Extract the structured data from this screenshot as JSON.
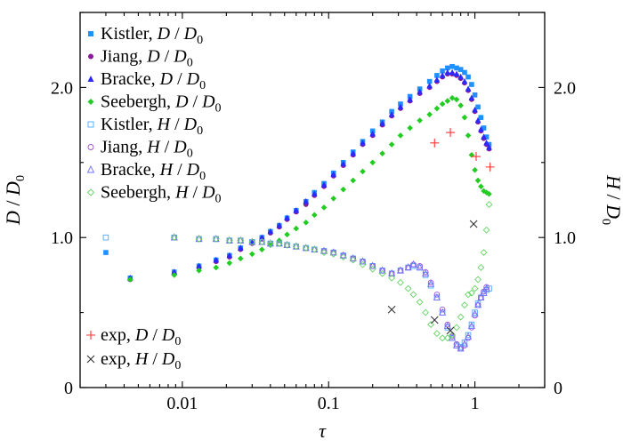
{
  "chart_data": {
    "type": "scatter",
    "x_scale": "log",
    "xlim": [
      0.002,
      3
    ],
    "ylim": [
      0,
      2.5
    ],
    "xlabel": "τ",
    "ylabel_left": "D / D0",
    "ylabel_right": "H / D0",
    "x_ticks": [
      {
        "value": 0.01,
        "label": "0.01"
      },
      {
        "value": 0.1,
        "label": "0.1"
      },
      {
        "value": 1,
        "label": "1"
      }
    ],
    "y_ticks_left": [
      {
        "value": 0,
        "label": "0"
      },
      {
        "value": 1,
        "label": "1.0"
      },
      {
        "value": 2,
        "label": "2.0"
      }
    ],
    "y_ticks_right": [
      {
        "value": 0,
        "label": "0"
      },
      {
        "value": 1,
        "label": "1.0"
      },
      {
        "value": 2,
        "label": "2.0"
      }
    ],
    "grid": false,
    "legend_placement": "top-left and bottom-left",
    "series": [
      {
        "name": "Kistler, D / D0",
        "legend_main": "Kistler, ",
        "legend_var": "D",
        "legend_den": "D",
        "marker": "square-filled",
        "color": "#1e90ff",
        "x": [
          0.003,
          0.0044,
          0.0088,
          0.013,
          0.017,
          0.021,
          0.025,
          0.03,
          0.035,
          0.04,
          0.046,
          0.052,
          0.06,
          0.07,
          0.08,
          0.093,
          0.108,
          0.126,
          0.147,
          0.171,
          0.2,
          0.233,
          0.27,
          0.31,
          0.36,
          0.42,
          0.49,
          0.55,
          0.6,
          0.65,
          0.7,
          0.75,
          0.8,
          0.85,
          0.9,
          0.95,
          1.0,
          1.05,
          1.1,
          1.15,
          1.2,
          1.25
        ],
        "y": [
          0.9,
          0.73,
          0.77,
          0.81,
          0.85,
          0.88,
          0.93,
          0.97,
          1.0,
          1.04,
          1.08,
          1.13,
          1.18,
          1.24,
          1.3,
          1.36,
          1.43,
          1.5,
          1.57,
          1.64,
          1.71,
          1.77,
          1.84,
          1.89,
          1.94,
          1.99,
          2.04,
          2.08,
          2.11,
          2.13,
          2.14,
          2.13,
          2.12,
          2.1,
          2.07,
          2.02,
          1.95,
          1.87,
          1.8,
          1.73,
          1.67,
          1.62
        ]
      },
      {
        "name": "Jiang, D / D0",
        "legend_main": "Jiang, ",
        "legend_var": "D",
        "legend_den": "D",
        "marker": "circle-filled",
        "color": "#8b1a9b",
        "x": [
          0.0044,
          0.0088,
          0.013,
          0.017,
          0.021,
          0.025,
          0.03,
          0.035,
          0.04,
          0.046,
          0.052,
          0.06,
          0.07,
          0.08,
          0.093,
          0.108,
          0.126,
          0.147,
          0.171,
          0.2,
          0.233,
          0.27,
          0.31,
          0.36,
          0.42,
          0.49,
          0.55,
          0.6,
          0.65,
          0.7,
          0.75,
          0.8,
          0.85,
          0.9,
          0.95,
          1.0,
          1.05,
          1.1,
          1.15,
          1.2,
          1.25
        ],
        "y": [
          0.72,
          0.76,
          0.8,
          0.84,
          0.87,
          0.92,
          0.96,
          0.99,
          1.03,
          1.07,
          1.12,
          1.17,
          1.22,
          1.28,
          1.34,
          1.41,
          1.48,
          1.55,
          1.62,
          1.68,
          1.75,
          1.81,
          1.86,
          1.91,
          1.96,
          2.0,
          2.04,
          2.07,
          2.09,
          2.09,
          2.08,
          2.06,
          2.03,
          1.98,
          1.92,
          1.84,
          1.77,
          1.71,
          1.66,
          1.62,
          1.59
        ]
      },
      {
        "name": "Bracke, D / D0",
        "legend_main": "Bracke, ",
        "legend_var": "D",
        "legend_den": "D",
        "marker": "triangle-filled",
        "color": "#2a2aff",
        "x": [
          0.0044,
          0.0088,
          0.013,
          0.017,
          0.021,
          0.025,
          0.03,
          0.035,
          0.04,
          0.046,
          0.052,
          0.06,
          0.07,
          0.08,
          0.093,
          0.108,
          0.126,
          0.147,
          0.171,
          0.2,
          0.233,
          0.27,
          0.31,
          0.36,
          0.42,
          0.49,
          0.55,
          0.6,
          0.65,
          0.7,
          0.75,
          0.8,
          0.85,
          0.9,
          0.95,
          1.0,
          1.05,
          1.1,
          1.15,
          1.2,
          1.25
        ],
        "y": [
          0.73,
          0.77,
          0.81,
          0.85,
          0.88,
          0.93,
          0.97,
          1.0,
          1.04,
          1.08,
          1.13,
          1.18,
          1.24,
          1.29,
          1.35,
          1.42,
          1.49,
          1.56,
          1.63,
          1.69,
          1.76,
          1.82,
          1.87,
          1.92,
          1.97,
          2.01,
          2.05,
          2.08,
          2.1,
          2.1,
          2.09,
          2.07,
          2.04,
          1.99,
          1.93,
          1.85,
          1.78,
          1.72,
          1.67,
          1.63,
          1.6
        ]
      },
      {
        "name": "Seebergh, D / D0",
        "legend_main": "Seebergh, ",
        "legend_var": "D",
        "legend_den": "D",
        "marker": "diamond-filled",
        "color": "#22cc22",
        "x": [
          0.0044,
          0.0088,
          0.013,
          0.017,
          0.021,
          0.025,
          0.03,
          0.035,
          0.04,
          0.046,
          0.052,
          0.06,
          0.07,
          0.08,
          0.093,
          0.108,
          0.126,
          0.147,
          0.171,
          0.2,
          0.233,
          0.27,
          0.31,
          0.36,
          0.42,
          0.49,
          0.55,
          0.6,
          0.65,
          0.7,
          0.75,
          0.8,
          0.85,
          0.9,
          0.95,
          1.0,
          1.05,
          1.1,
          1.15,
          1.2,
          1.25
        ],
        "y": [
          0.72,
          0.75,
          0.78,
          0.8,
          0.83,
          0.86,
          0.89,
          0.92,
          0.95,
          0.98,
          1.02,
          1.06,
          1.1,
          1.15,
          1.2,
          1.26,
          1.32,
          1.38,
          1.44,
          1.5,
          1.56,
          1.62,
          1.68,
          1.73,
          1.78,
          1.82,
          1.86,
          1.89,
          1.91,
          1.93,
          1.92,
          1.88,
          1.8,
          1.68,
          1.55,
          1.45,
          1.38,
          1.34,
          1.31,
          1.3,
          1.29
        ]
      },
      {
        "name": "Kistler, H / D0",
        "legend_main": "Kistler, ",
        "legend_var": "H",
        "legend_den": "D",
        "marker": "square-open",
        "color": "#4aa8ff",
        "x": [
          0.003,
          0.0088,
          0.013,
          0.017,
          0.021,
          0.025,
          0.03,
          0.035,
          0.04,
          0.046,
          0.052,
          0.06,
          0.07,
          0.08,
          0.093,
          0.108,
          0.126,
          0.147,
          0.171,
          0.2,
          0.233,
          0.27,
          0.31,
          0.35,
          0.38,
          0.42,
          0.46,
          0.5,
          0.55,
          0.6,
          0.65,
          0.7,
          0.75,
          0.8,
          0.85,
          0.9,
          0.95,
          1.0,
          1.05,
          1.1,
          1.15,
          1.2,
          1.25
        ],
        "y": [
          1.0,
          1.0,
          0.99,
          0.99,
          0.98,
          0.98,
          0.97,
          0.97,
          0.96,
          0.96,
          0.95,
          0.94,
          0.93,
          0.92,
          0.91,
          0.9,
          0.88,
          0.86,
          0.84,
          0.81,
          0.78,
          0.76,
          0.78,
          0.8,
          0.81,
          0.8,
          0.75,
          0.68,
          0.6,
          0.5,
          0.4,
          0.33,
          0.28,
          0.27,
          0.3,
          0.35,
          0.42,
          0.5,
          0.56,
          0.6,
          0.63,
          0.65,
          0.66
        ]
      },
      {
        "name": "Jiang, H / D0",
        "legend_main": "Jiang, ",
        "legend_var": "H",
        "legend_den": "D",
        "marker": "circle-open",
        "color": "#a050d0",
        "x": [
          0.0088,
          0.013,
          0.017,
          0.021,
          0.025,
          0.03,
          0.035,
          0.04,
          0.046,
          0.052,
          0.06,
          0.07,
          0.08,
          0.093,
          0.108,
          0.126,
          0.147,
          0.171,
          0.2,
          0.233,
          0.27,
          0.31,
          0.35,
          0.38,
          0.42,
          0.46,
          0.5,
          0.55,
          0.6,
          0.65,
          0.7,
          0.75,
          0.8,
          0.85,
          0.9,
          0.95,
          1.0,
          1.05,
          1.1,
          1.15,
          1.2
        ],
        "y": [
          1.0,
          0.99,
          0.99,
          0.98,
          0.98,
          0.97,
          0.97,
          0.96,
          0.96,
          0.95,
          0.94,
          0.93,
          0.92,
          0.91,
          0.9,
          0.88,
          0.86,
          0.84,
          0.81,
          0.78,
          0.76,
          0.78,
          0.8,
          0.82,
          0.81,
          0.77,
          0.7,
          0.62,
          0.52,
          0.42,
          0.34,
          0.29,
          0.26,
          0.28,
          0.33,
          0.4,
          0.48,
          0.55,
          0.6,
          0.64,
          0.67
        ]
      },
      {
        "name": "Bracke, H / D0",
        "legend_main": "Bracke, ",
        "legend_var": "H",
        "legend_den": "D",
        "marker": "triangle-open",
        "color": "#7070ff",
        "x": [
          0.0088,
          0.013,
          0.017,
          0.021,
          0.025,
          0.03,
          0.035,
          0.04,
          0.046,
          0.052,
          0.06,
          0.07,
          0.08,
          0.093,
          0.108,
          0.126,
          0.147,
          0.171,
          0.2,
          0.233,
          0.27,
          0.31,
          0.35,
          0.38,
          0.42,
          0.46,
          0.5,
          0.55,
          0.6,
          0.65,
          0.7,
          0.75,
          0.8,
          0.85,
          0.9,
          0.95,
          1.0,
          1.05,
          1.1,
          1.15,
          1.2
        ],
        "y": [
          1.0,
          0.99,
          0.99,
          0.98,
          0.98,
          0.97,
          0.97,
          0.96,
          0.96,
          0.95,
          0.94,
          0.93,
          0.92,
          0.91,
          0.9,
          0.88,
          0.86,
          0.84,
          0.81,
          0.78,
          0.76,
          0.78,
          0.8,
          0.82,
          0.8,
          0.76,
          0.69,
          0.6,
          0.5,
          0.41,
          0.33,
          0.28,
          0.26,
          0.29,
          0.34,
          0.41,
          0.49,
          0.55,
          0.6,
          0.63,
          0.66
        ]
      },
      {
        "name": "Seebergh, H / D0",
        "legend_main": "Seebergh, ",
        "legend_var": "H",
        "legend_den": "D",
        "marker": "diamond-open",
        "color": "#66d466",
        "x": [
          0.0088,
          0.013,
          0.017,
          0.021,
          0.025,
          0.03,
          0.035,
          0.04,
          0.046,
          0.052,
          0.06,
          0.07,
          0.08,
          0.093,
          0.108,
          0.126,
          0.147,
          0.171,
          0.2,
          0.233,
          0.27,
          0.31,
          0.35,
          0.38,
          0.42,
          0.46,
          0.5,
          0.55,
          0.6,
          0.65,
          0.7,
          0.75,
          0.8,
          0.85,
          0.9,
          0.95,
          1.0,
          1.05,
          1.1,
          1.15,
          1.2,
          1.25
        ],
        "y": [
          1.0,
          0.99,
          0.99,
          0.98,
          0.98,
          0.97,
          0.97,
          0.96,
          0.96,
          0.95,
          0.94,
          0.93,
          0.92,
          0.9,
          0.89,
          0.87,
          0.85,
          0.82,
          0.79,
          0.76,
          0.73,
          0.7,
          0.66,
          0.62,
          0.57,
          0.5,
          0.42,
          0.36,
          0.33,
          0.33,
          0.35,
          0.4,
          0.47,
          0.55,
          0.62,
          0.63,
          0.66,
          0.72,
          0.8,
          0.9,
          1.05,
          1.22
        ]
      },
      {
        "name": "exp, D / D0",
        "legend_main": "exp, ",
        "legend_var": "D",
        "legend_den": "D",
        "marker": "plus",
        "color": "#ff3333",
        "x": [
          0.53,
          0.68,
          1.02,
          1.27
        ],
        "y": [
          1.63,
          1.7,
          1.54,
          1.47
        ]
      },
      {
        "name": "exp, H / D0",
        "legend_main": "exp, ",
        "legend_var": "H",
        "legend_den": "D",
        "marker": "cross",
        "color": "#333333",
        "x": [
          0.27,
          0.53,
          0.68,
          0.98
        ],
        "y": [
          0.52,
          0.45,
          0.38,
          1.09
        ]
      }
    ]
  }
}
